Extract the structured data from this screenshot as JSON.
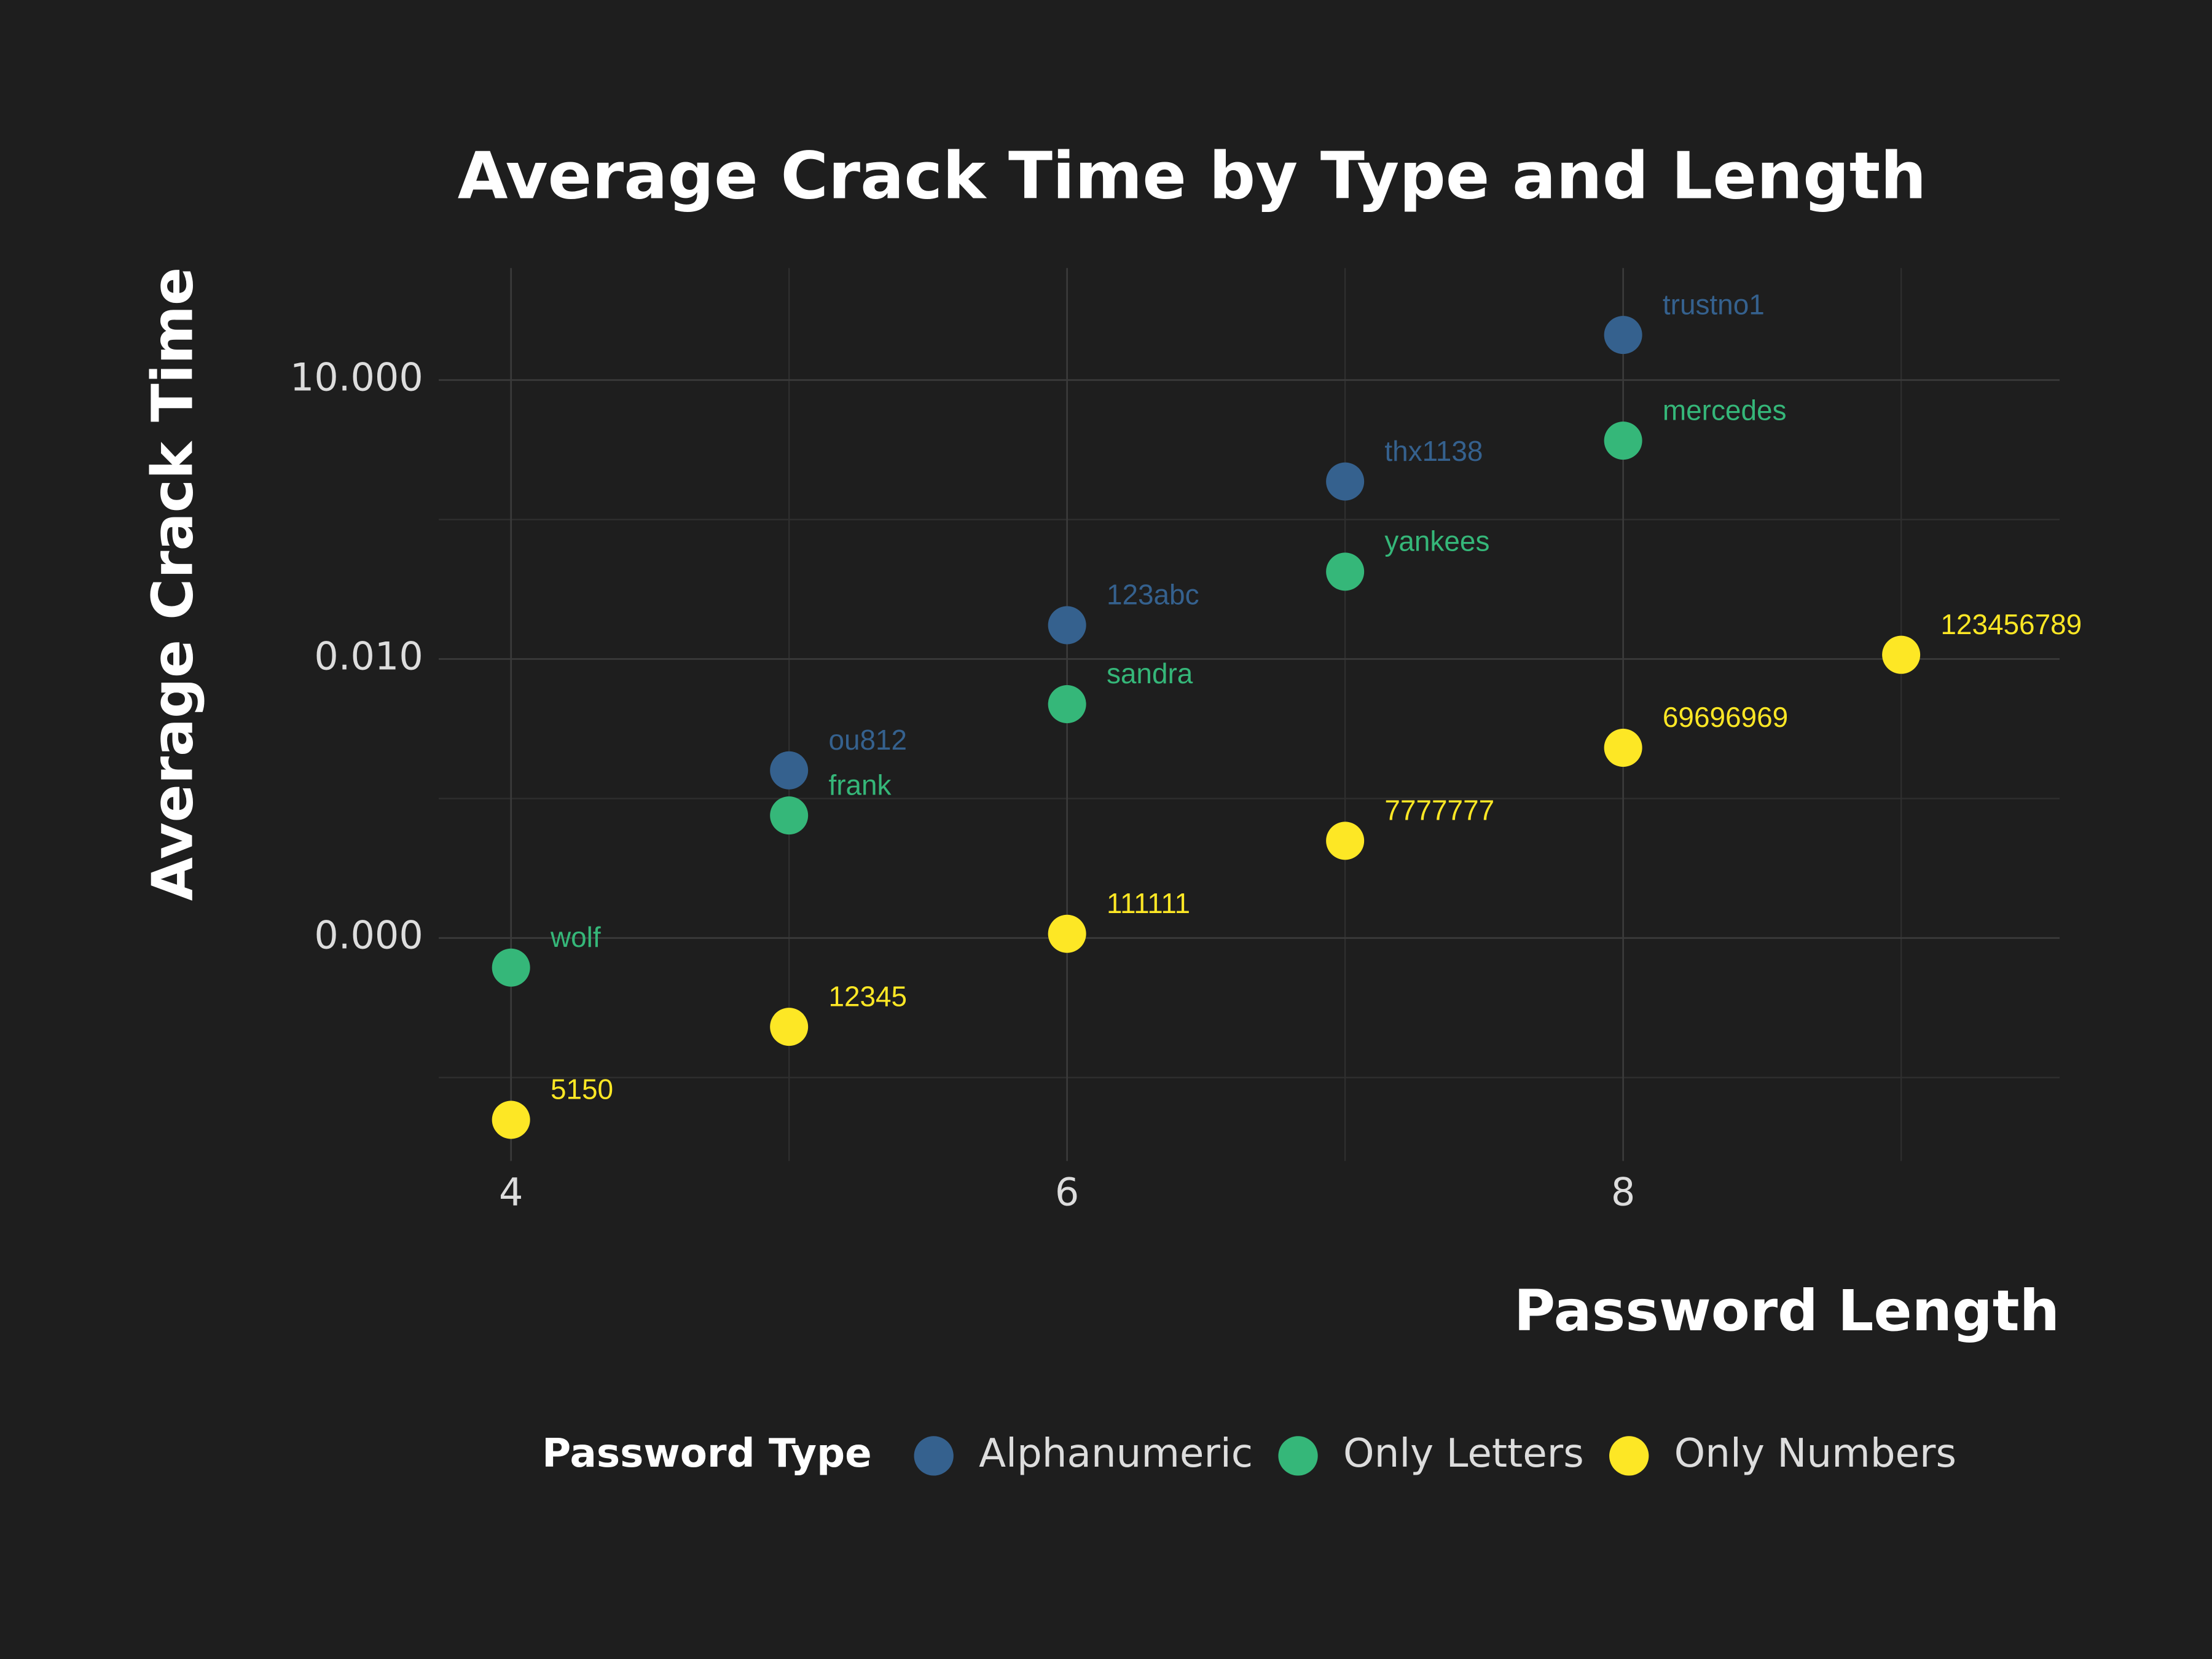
{
  "chart_data": {
    "type": "scatter",
    "title": "Average Crack Time by Type and Length",
    "x_label": "Password Length",
    "y_label": "Average Crack Time",
    "legend_title": "Password Type",
    "legend_position": "bottom",
    "y_log": true,
    "grid": true,
    "xlim": [
      3.74,
      9.57
    ],
    "xticks": [
      4,
      6,
      8
    ],
    "x_minor_ticks": [
      5,
      7,
      9
    ],
    "ylim": [
      4e-08,
      160
    ],
    "yticks": [
      {
        "value": 10,
        "label": "10.000"
      },
      {
        "value": 0.01,
        "label": "0.010"
      },
      {
        "value": 1e-05,
        "label": "0.000"
      }
    ],
    "y_minor_ticks": [
      0.316,
      0.000316,
      3.16e-07
    ],
    "series": [
      {
        "name": "Alphanumeric",
        "color": "#35618e",
        "x": [
          5,
          6,
          7,
          8
        ],
        "values": [
          0.000635,
          0.0231,
          0.811,
          30.5
        ],
        "point_labels": [
          "ou812",
          "123abc",
          "thx1138",
          "trustno1"
        ]
      },
      {
        "name": "Only Letters",
        "color": "#35b779",
        "x": [
          4,
          5,
          6,
          7,
          8
        ],
        "values": [
          4.81e-06,
          0.000208,
          0.00327,
          0.0869,
          2.23
        ],
        "point_labels": [
          "wolf",
          "frank",
          "sandra",
          "yankees",
          "mercedes"
        ]
      },
      {
        "name": "Only Numbers",
        "color": "#fde725",
        "x": [
          4,
          5,
          6,
          7,
          8,
          9
        ],
        "values": [
          1.11e-07,
          1.11e-06,
          1.11e-05,
          0.000111,
          0.00111,
          0.0111
        ],
        "point_labels": [
          "5150",
          "12345",
          "111111",
          "7777777",
          "69696969",
          "123456789"
        ]
      }
    ]
  }
}
